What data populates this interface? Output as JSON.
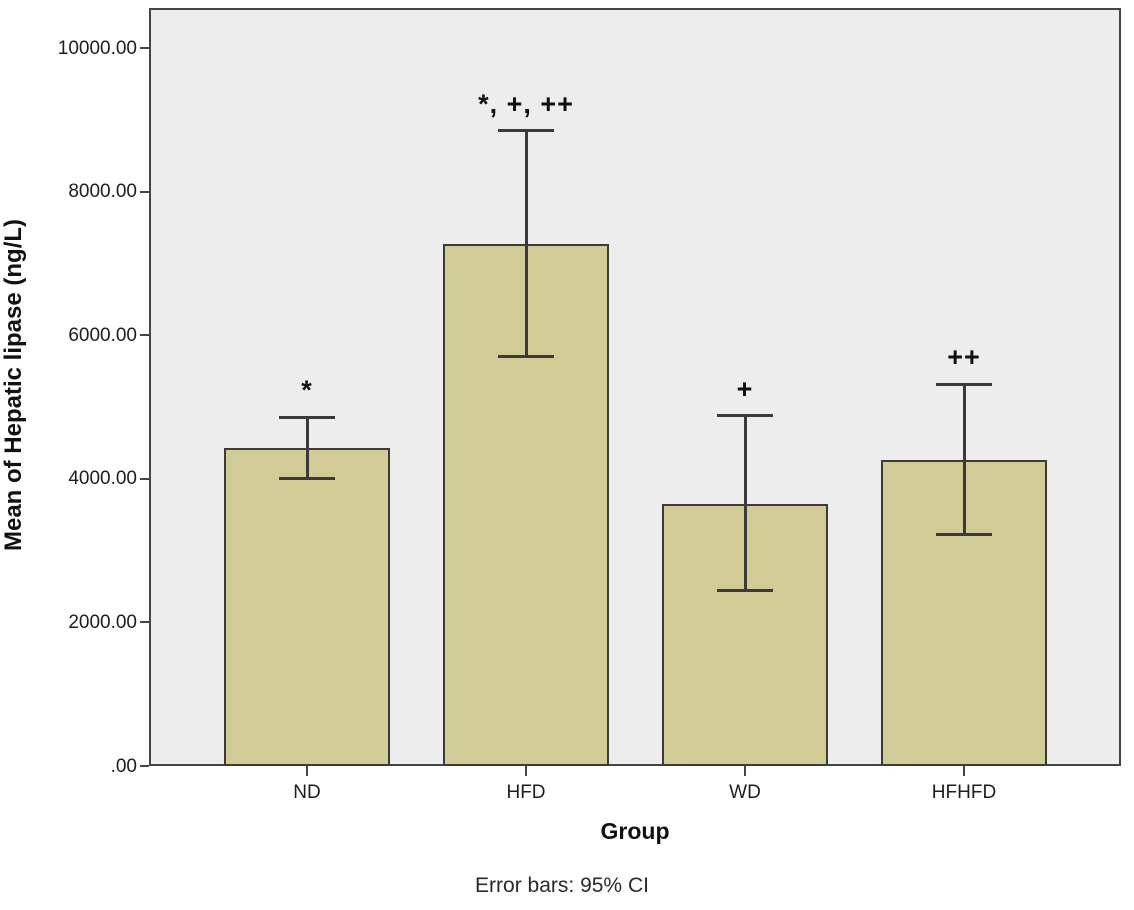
{
  "chart_data": {
    "type": "bar",
    "title": "",
    "categories": [
      "ND",
      "HFD",
      "WD",
      "HFHFD"
    ],
    "values": [
      4430,
      7270,
      3650,
      4260
    ],
    "error_low": [
      4010,
      5700,
      2450,
      3220
    ],
    "error_high": [
      4860,
      8850,
      4880,
      5320
    ],
    "annotations": [
      "*",
      "*, +, ++",
      "+",
      "++"
    ],
    "xlabel": "Group",
    "ylabel": "Mean of Hepatic lipase (ng/L)",
    "footnote": "Error bars: 95% CI",
    "yticks": [
      0,
      2000,
      4000,
      6000,
      8000,
      10000
    ],
    "ytick_labels": [
      ".00",
      "2000.00",
      "4000.00",
      "6000.00",
      "8000.00",
      "10000.00"
    ],
    "ylim": [
      0,
      10560
    ],
    "grid": false,
    "legend": "none",
    "error_bars": "95% CI",
    "colors": {
      "bar_fill": "#d1cb96",
      "bar_border": "#3c3c34",
      "plot_background": "#ededee",
      "frame": "#454545",
      "error_bar": "#3a3a3a",
      "text": "#111111"
    }
  }
}
